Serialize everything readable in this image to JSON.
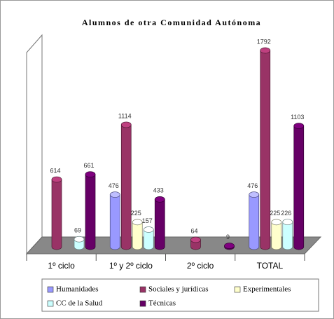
{
  "chart_data": {
    "type": "bar3d",
    "title": "Alumnos de otra Comunidad Autónoma",
    "categories": [
      "1º ciclo",
      "1º y 2º ciclo",
      "2º ciclo",
      "TOTAL"
    ],
    "series": [
      {
        "name": "Humanidades",
        "color": "#9999ff",
        "values": [
          null,
          476,
          null,
          476
        ]
      },
      {
        "name": "Sociales y jurídicas",
        "color": "#993366",
        "values": [
          614,
          1114,
          64,
          1792
        ]
      },
      {
        "name": "Experimentales",
        "color": "#ffffcc",
        "values": [
          null,
          225,
          null,
          225
        ]
      },
      {
        "name": "CC de la Salud",
        "color": "#ccffff",
        "values": [
          69,
          157,
          null,
          226
        ]
      },
      {
        "name": "Técnicas",
        "color": "#660066",
        "values": [
          661,
          433,
          9,
          1103
        ]
      }
    ]
  }
}
